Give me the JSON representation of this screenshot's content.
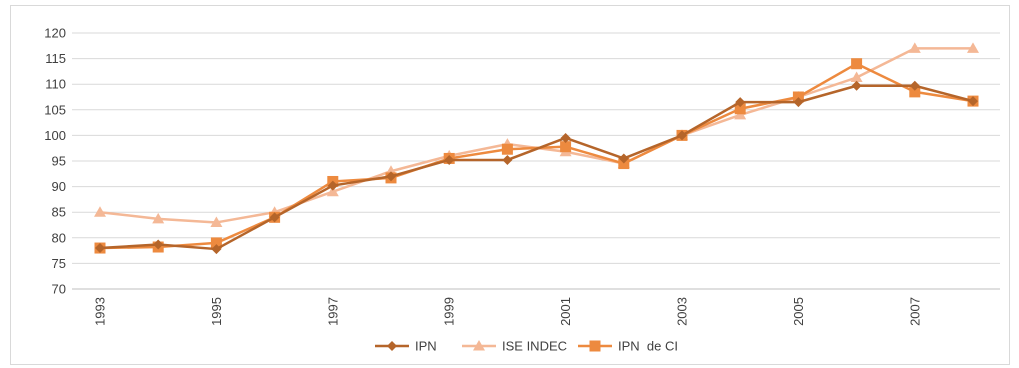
{
  "chart_data": {
    "type": "line",
    "x": [
      1993,
      1994,
      1995,
      1996,
      1997,
      1998,
      1999,
      2000,
      2001,
      2002,
      2003,
      2004,
      2005,
      2006,
      2007,
      2008
    ],
    "x_tick_labels": [
      "1993",
      "1995",
      "1997",
      "1999",
      "2001",
      "2003",
      "2005",
      "2007"
    ],
    "x_tick_values": [
      1993,
      1995,
      1997,
      1999,
      2001,
      2003,
      2005,
      2007
    ],
    "ylim": [
      70,
      120
    ],
    "y_ticks": [
      70,
      75,
      80,
      85,
      90,
      95,
      100,
      105,
      110,
      115,
      120
    ],
    "grid": true,
    "legend_position": "bottom",
    "series": [
      {
        "name": "IPN",
        "color": "#b5652a",
        "marker": "diamond",
        "values": [
          78.0,
          78.7,
          77.8,
          84.0,
          90.2,
          92.0,
          95.2,
          95.2,
          99.5,
          95.5,
          100.0,
          106.5,
          106.5,
          109.7,
          109.7,
          106.7
        ]
      },
      {
        "name": "ISE INDEC",
        "color": "#f4b896",
        "marker": "triangle",
        "values": [
          85.0,
          83.7,
          83.0,
          85.0,
          89.0,
          93.0,
          96.0,
          98.3,
          96.8,
          94.5,
          100.0,
          104.0,
          107.5,
          111.3,
          117.0,
          117.0
        ]
      },
      {
        "name": "IPN  de CI",
        "color": "#ed8a3f",
        "marker": "square",
        "values": [
          78.0,
          78.2,
          79.0,
          84.0,
          91.0,
          91.7,
          95.5,
          97.3,
          97.8,
          94.5,
          100.0,
          105.2,
          107.5,
          114.0,
          108.5,
          106.7
        ]
      }
    ]
  }
}
